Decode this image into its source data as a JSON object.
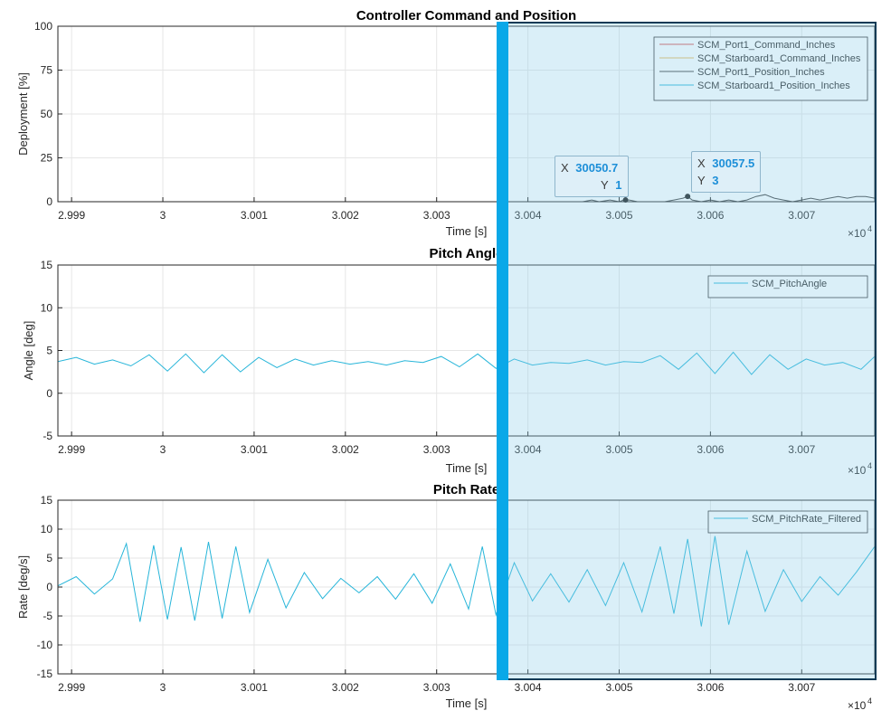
{
  "colors": {
    "background": "#ffffff",
    "axes_border": "#262626",
    "grid": "#e6e6e6",
    "tick_text": "#262626",
    "selection_fill": "#8ecdea",
    "selection_edge": "#0aa8e8",
    "datatip_value": "#1d8fd8"
  },
  "x_exponent": "×10",
  "x_exponent_power": "4",
  "datatips": [
    {
      "x_label": "X",
      "x_value": "30050.7",
      "y_label": "Y",
      "y_value": "1"
    },
    {
      "x_label": "X",
      "x_value": "30057.5",
      "y_label": "Y",
      "y_value": "3"
    }
  ],
  "chart_data": [
    {
      "type": "line",
      "title": "Controller Command and Position",
      "xlabel": "Time [s]",
      "ylabel": "Deployment [%]",
      "xlim": [
        2.99885,
        3.0078
      ],
      "ylim": [
        0,
        100
      ],
      "xticks": [
        2.999,
        3.0,
        3.001,
        3.002,
        3.003,
        3.004,
        3.005,
        3.006,
        3.007
      ],
      "xtick_labels": [
        "2.999",
        "3",
        "3.001",
        "3.002",
        "3.003",
        "3.004",
        "3.005",
        "3.006",
        "3.007"
      ],
      "yticks": [
        0,
        25,
        50,
        75,
        100
      ],
      "ytick_labels": [
        "0",
        "25",
        "50",
        "75",
        "100"
      ],
      "grid": true,
      "legend_position": "top-right",
      "series": [
        {
          "name": "SCM_Port1_Command_Inches",
          "color": "#d9534f",
          "x": [
            2.99885,
            3.0078
          ],
          "y": [
            0,
            0
          ]
        },
        {
          "name": "SCM_Starboard1_Command_Inches",
          "color": "#e6b85c",
          "x": [
            2.99885,
            3.0078
          ],
          "y": [
            0,
            0
          ]
        },
        {
          "name": "SCM_Port1_Position_Inches",
          "color": "#404040",
          "x": [
            2.99885,
            3.0046,
            3.0047,
            3.00478,
            3.0049,
            3.005,
            3.00505,
            3.00511,
            3.0052,
            3.00535,
            3.0055,
            3.0056,
            3.0057,
            3.00575,
            3.0058,
            3.0059,
            3.006,
            3.0061,
            3.0062,
            3.0063,
            3.0064,
            3.0065,
            3.0066,
            3.0067,
            3.0068,
            3.0069,
            3.007,
            3.0071,
            3.0072,
            3.0073,
            3.0074,
            3.0075,
            3.0076,
            3.0077,
            3.0078
          ],
          "y": [
            0,
            0,
            1,
            0,
            1,
            0,
            1,
            1,
            0,
            0,
            0,
            1,
            2,
            3,
            1,
            0,
            1,
            0,
            1,
            0,
            1,
            3,
            4,
            2,
            1,
            0,
            1,
            2,
            1,
            2,
            3,
            2,
            3,
            3,
            2
          ]
        },
        {
          "name": "SCM_Starboard1_Position_Inches",
          "color": "#26b5d9",
          "x": [
            2.99885,
            3.0078
          ],
          "y": [
            0,
            0
          ]
        }
      ]
    },
    {
      "type": "line",
      "title": "Pitch Angle",
      "xlabel": "Time [s]",
      "ylabel": "Angle [deg]",
      "xlim": [
        2.99885,
        3.0078
      ],
      "ylim": [
        -5,
        15
      ],
      "xticks": [
        2.999,
        3.0,
        3.001,
        3.002,
        3.003,
        3.004,
        3.005,
        3.006,
        3.007
      ],
      "xtick_labels": [
        "2.999",
        "3",
        "3.001",
        "3.002",
        "3.003",
        "3.004",
        "3.005",
        "3.006",
        "3.007"
      ],
      "yticks": [
        -5,
        0,
        5,
        10,
        15
      ],
      "ytick_labels": [
        "-5",
        "0",
        "5",
        "10",
        "15"
      ],
      "grid": true,
      "legend_position": "top-right",
      "series": [
        {
          "name": "SCM_PitchAngle",
          "color": "#26b5d9",
          "x": [
            2.99885,
            2.99905,
            2.99925,
            2.99945,
            2.99965,
            2.99985,
            3.00005,
            3.00025,
            3.00045,
            3.00065,
            3.00085,
            3.00105,
            3.00125,
            3.00145,
            3.00165,
            3.00185,
            3.00205,
            3.00225,
            3.00245,
            3.00265,
            3.00285,
            3.00305,
            3.00325,
            3.00345,
            3.00365,
            3.00385,
            3.00405,
            3.00425,
            3.00445,
            3.00465,
            3.00485,
            3.00505,
            3.00525,
            3.00545,
            3.00565,
            3.00585,
            3.00605,
            3.00625,
            3.00645,
            3.00665,
            3.00685,
            3.00705,
            3.00725,
            3.00745,
            3.00765,
            3.0078
          ],
          "y": [
            3.7,
            4.2,
            3.4,
            3.9,
            3.2,
            4.5,
            2.6,
            4.6,
            2.4,
            4.5,
            2.5,
            4.2,
            3.0,
            4.0,
            3.3,
            3.8,
            3.4,
            3.7,
            3.3,
            3.8,
            3.6,
            4.3,
            3.1,
            4.6,
            2.9,
            4.0,
            3.3,
            3.6,
            3.5,
            3.9,
            3.3,
            3.7,
            3.6,
            4.4,
            2.8,
            4.7,
            2.3,
            4.8,
            2.2,
            4.5,
            2.8,
            4.0,
            3.3,
            3.6,
            2.8,
            4.3
          ]
        }
      ]
    },
    {
      "type": "line",
      "title": "Pitch Rate",
      "xlabel": "Time [s]",
      "ylabel": "Rate [deg/s]",
      "xlim": [
        2.99885,
        3.0078
      ],
      "ylim": [
        -15,
        15
      ],
      "xticks": [
        2.999,
        3.0,
        3.001,
        3.002,
        3.003,
        3.004,
        3.005,
        3.006,
        3.007
      ],
      "xtick_labels": [
        "2.999",
        "3",
        "3.001",
        "3.002",
        "3.003",
        "3.004",
        "3.005",
        "3.006",
        "3.007"
      ],
      "yticks": [
        -15,
        -10,
        -5,
        0,
        5,
        10,
        15
      ],
      "ytick_labels": [
        "-15",
        "-10",
        "-5",
        "0",
        "5",
        "10",
        "15"
      ],
      "grid": true,
      "legend_position": "top-right",
      "series": [
        {
          "name": "SCM_PitchRate_Filtered",
          "color": "#26b5d9",
          "x": [
            2.99885,
            2.99905,
            2.99925,
            2.99945,
            2.9996,
            2.99975,
            2.9999,
            3.00005,
            3.0002,
            3.00035,
            3.0005,
            3.00065,
            3.0008,
            3.00095,
            3.00115,
            3.00135,
            3.00155,
            3.00175,
            3.00195,
            3.00215,
            3.00235,
            3.00255,
            3.00275,
            3.00295,
            3.00315,
            3.00335,
            3.0035,
            3.00365,
            3.00385,
            3.00405,
            3.00425,
            3.00445,
            3.00465,
            3.00485,
            3.00505,
            3.00525,
            3.00545,
            3.0056,
            3.00575,
            3.0059,
            3.00605,
            3.0062,
            3.0064,
            3.0066,
            3.0068,
            3.007,
            3.0072,
            3.0074,
            3.0076,
            3.0078
          ],
          "y": [
            0.2,
            1.8,
            -1.2,
            1.4,
            7.5,
            -6.0,
            7.2,
            -5.6,
            6.9,
            -5.8,
            7.8,
            -5.4,
            7.0,
            -4.4,
            4.8,
            -3.6,
            2.5,
            -2.0,
            1.5,
            -1.0,
            1.8,
            -2.1,
            2.3,
            -2.8,
            4.0,
            -3.8,
            7.0,
            -4.8,
            4.2,
            -2.4,
            2.3,
            -2.6,
            3.0,
            -3.2,
            4.2,
            -4.3,
            7.0,
            -4.6,
            8.3,
            -6.8,
            8.8,
            -6.5,
            6.2,
            -4.2,
            3.0,
            -2.5,
            1.8,
            -1.4,
            2.6,
            7.0
          ]
        }
      ]
    }
  ]
}
